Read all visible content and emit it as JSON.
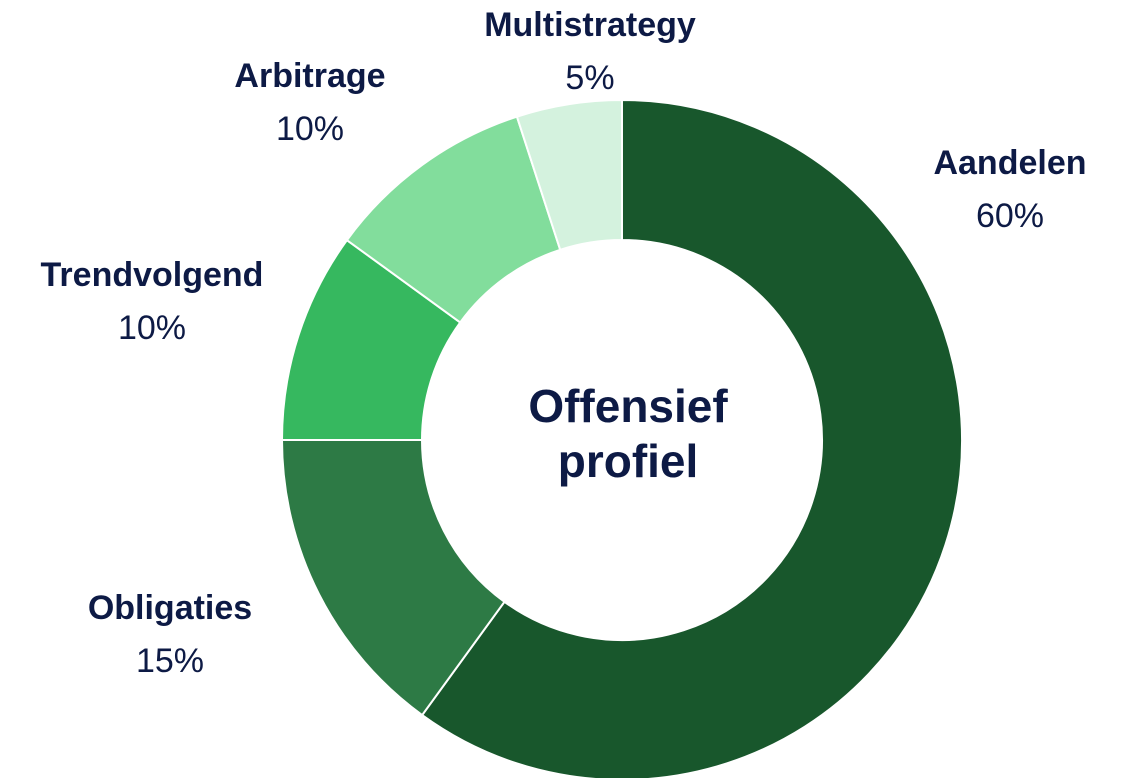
{
  "chart_data": {
    "type": "donut",
    "categories": [
      "Aandelen",
      "Obligaties",
      "Trendvolgend",
      "Arbitrage",
      "Multistrategy"
    ],
    "values": [
      60,
      15,
      10,
      10,
      5
    ],
    "value_labels": [
      "60%",
      "15%",
      "10%",
      "10%",
      "5%"
    ],
    "colors": [
      "#18572c",
      "#2d7a45",
      "#36b85f",
      "#82dd9c",
      "#d4f2de"
    ],
    "center_label": [
      "Offensief",
      "profiel"
    ]
  }
}
